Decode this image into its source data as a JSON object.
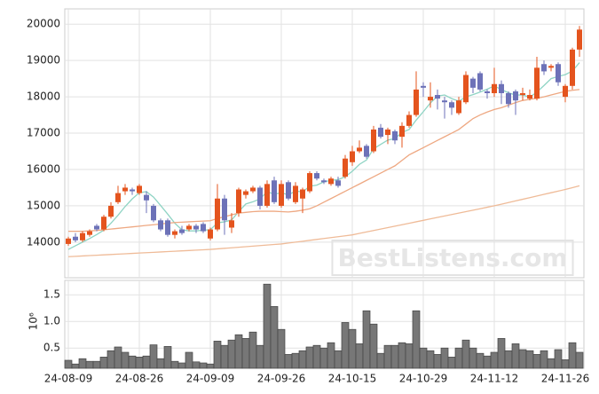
{
  "chart_data": [
    {
      "type": "candlestick",
      "up_color": "#e4541e",
      "down_color": "#6d72b8",
      "open": [
        13950,
        14150,
        14050,
        14200,
        14450,
        14350,
        14700,
        15100,
        15400,
        15450,
        15350,
        15300,
        15000,
        14600,
        14600,
        14200,
        14350,
        14350,
        14450,
        14500,
        14100,
        14350,
        15200,
        14400,
        14800,
        15300,
        15400,
        15500,
        15000,
        15700,
        15000,
        15650,
        15100,
        15200,
        15400,
        15900,
        15700,
        15600,
        15700,
        15800,
        16200,
        16500,
        16650,
        16500,
        17150,
        16950,
        17050,
        16900,
        17200,
        17500,
        18300,
        17900,
        18050,
        17900,
        17850,
        17550,
        17850,
        18500,
        18650,
        18150,
        18100,
        18350,
        18100,
        18150,
        18050,
        17950,
        17950,
        18900,
        18800,
        18900,
        18000,
        18300,
        19300
      ],
      "high": [
        14150,
        14250,
        14300,
        14350,
        14500,
        14750,
        15100,
        15550,
        15600,
        15500,
        15600,
        15400,
        15050,
        14650,
        14650,
        14350,
        14450,
        14500,
        14500,
        14550,
        14400,
        15600,
        15300,
        14800,
        15500,
        15450,
        15550,
        15550,
        15700,
        15800,
        15700,
        15700,
        15650,
        15500,
        15950,
        15950,
        15750,
        15800,
        15800,
        16400,
        16650,
        16800,
        16700,
        17200,
        17250,
        17150,
        17100,
        17300,
        17600,
        18700,
        18400,
        18400,
        18200,
        18000,
        17900,
        18000,
        18700,
        18550,
        18700,
        18200,
        18800,
        18450,
        18150,
        18200,
        18250,
        18200,
        19100,
        19000,
        18900,
        18950,
        18350,
        19350,
        19950
      ],
      "low": [
        13900,
        14000,
        14000,
        14150,
        14300,
        14300,
        14650,
        15050,
        15300,
        15300,
        15300,
        14800,
        14550,
        14300,
        14150,
        14100,
        14200,
        14300,
        14250,
        14250,
        14050,
        14300,
        14200,
        14250,
        14700,
        15200,
        15350,
        14900,
        14950,
        15050,
        14950,
        15150,
        15050,
        14800,
        15350,
        15700,
        15600,
        15550,
        15500,
        15750,
        16100,
        16450,
        16300,
        16450,
        16850,
        16700,
        16700,
        16600,
        17150,
        17450,
        18000,
        17700,
        17650,
        17400,
        17500,
        17500,
        17800,
        18100,
        18150,
        17950,
        18000,
        17800,
        17700,
        17500,
        17900,
        17900,
        17900,
        18600,
        18700,
        18300,
        17850,
        18200,
        19100
      ],
      "close": [
        14100,
        14050,
        14250,
        14300,
        14350,
        14700,
        15000,
        15350,
        15500,
        15400,
        15550,
        15150,
        14600,
        14350,
        14200,
        14300,
        14250,
        14450,
        14350,
        14300,
        14350,
        15200,
        14600,
        14600,
        15450,
        15400,
        15500,
        15000,
        15600,
        15100,
        15600,
        15200,
        15550,
        15450,
        15900,
        15750,
        15650,
        15750,
        15550,
        16300,
        16500,
        16600,
        16350,
        17100,
        16900,
        17100,
        16800,
        17200,
        17500,
        18200,
        18250,
        18000,
        17950,
        17850,
        17700,
        17900,
        18600,
        18250,
        18200,
        18100,
        18350,
        18100,
        17800,
        17900,
        18100,
        18050,
        18800,
        18700,
        18850,
        18400,
        18300,
        19300,
        19850
      ],
      "series": [
        {
          "color": "#8fd4c4",
          "values": [
            13800,
            13900,
            14000,
            14100,
            14210,
            14330,
            14520,
            14740,
            14980,
            15190,
            15360,
            15390,
            15240,
            15010,
            14770,
            14520,
            14340,
            14310,
            14310,
            14330,
            14340,
            14530,
            14560,
            14610,
            14840,
            15050,
            15110,
            15190,
            15390,
            15320,
            15360,
            15300,
            15410,
            15380,
            15540,
            15570,
            15660,
            15700,
            15720,
            15800,
            15950,
            16140,
            16260,
            16570,
            16690,
            16810,
            16850,
            17020,
            17100,
            17360,
            17590,
            17830,
            18020,
            18050,
            17950,
            17880,
            18000,
            18060,
            18130,
            18210,
            18300,
            18200,
            18110,
            18050,
            18050,
            17990,
            18130,
            18310,
            18500,
            18560,
            18610,
            18710,
            18940
          ]
        },
        {
          "color": "#eea882",
          "values": [
            14300,
            14300,
            14300,
            14310,
            14320,
            14340,
            14360,
            14380,
            14400,
            14420,
            14440,
            14460,
            14480,
            14500,
            14520,
            14540,
            14550,
            14560,
            14570,
            14580,
            14590,
            14650,
            14700,
            14750,
            14800,
            14820,
            14840,
            14850,
            14850,
            14850,
            14840,
            14830,
            14850,
            14880,
            14920,
            15000,
            15100,
            15200,
            15300,
            15400,
            15500,
            15600,
            15700,
            15800,
            15900,
            16000,
            16100,
            16250,
            16400,
            16500,
            16600,
            16700,
            16800,
            16900,
            17000,
            17100,
            17250,
            17400,
            17500,
            17580,
            17650,
            17700,
            17770,
            17840,
            17900,
            17930,
            17960,
            18000,
            18050,
            18100,
            18150,
            18180,
            18200
          ]
        },
        {
          "color": "#efbb98",
          "values": [
            13600,
            13610,
            13620,
            13630,
            13640,
            13650,
            13660,
            13670,
            13680,
            13690,
            13700,
            13710,
            13720,
            13730,
            13740,
            13750,
            13760,
            13770,
            13780,
            13790,
            13800,
            13815,
            13830,
            13845,
            13860,
            13875,
            13890,
            13905,
            13920,
            13935,
            13950,
            13975,
            14000,
            14025,
            14050,
            14075,
            14100,
            14125,
            14150,
            14175,
            14200,
            14240,
            14280,
            14320,
            14360,
            14400,
            14440,
            14480,
            14520,
            14560,
            14600,
            14640,
            14680,
            14720,
            14760,
            14800,
            14840,
            14880,
            14920,
            14960,
            15000,
            15045,
            15090,
            15135,
            15180,
            15225,
            15270,
            15315,
            15360,
            15405,
            15450,
            15500,
            15550
          ]
        }
      ],
      "ylim": [
        13020,
        20420
      ],
      "yticks": [
        14000,
        15000,
        16000,
        17000,
        18000,
        19000,
        20000
      ],
      "grid": true,
      "watermark": "BestListens.com"
    },
    {
      "type": "bar",
      "color": "#777777",
      "x": [
        "24-08-09",
        null,
        null,
        null,
        null,
        null,
        null,
        null,
        null,
        null,
        "24-08-26",
        null,
        null,
        null,
        null,
        null,
        null,
        null,
        null,
        null,
        "24-09-09",
        null,
        null,
        null,
        null,
        null,
        null,
        null,
        null,
        null,
        "24-09-26",
        null,
        null,
        null,
        null,
        null,
        null,
        null,
        null,
        null,
        "24-10-15",
        null,
        null,
        null,
        null,
        null,
        null,
        null,
        null,
        null,
        "24-10-29",
        null,
        null,
        null,
        null,
        null,
        null,
        null,
        null,
        null,
        "24-11-12",
        null,
        null,
        null,
        null,
        null,
        null,
        null,
        null,
        null,
        "24-11-26",
        null,
        null
      ],
      "values": [
        0.27,
        0.2,
        0.3,
        0.25,
        0.25,
        0.33,
        0.45,
        0.52,
        0.42,
        0.35,
        0.33,
        0.35,
        0.56,
        0.3,
        0.53,
        0.25,
        0.22,
        0.42,
        0.24,
        0.22,
        0.2,
        0.63,
        0.55,
        0.65,
        0.75,
        0.68,
        0.8,
        0.55,
        1.7,
        1.28,
        0.85,
        0.38,
        0.4,
        0.45,
        0.52,
        0.55,
        0.5,
        0.6,
        0.45,
        0.98,
        0.85,
        0.58,
        1.2,
        0.95,
        0.4,
        0.55,
        0.55,
        0.6,
        0.58,
        1.2,
        0.5,
        0.45,
        0.38,
        0.5,
        0.33,
        0.5,
        0.65,
        0.5,
        0.4,
        0.35,
        0.42,
        0.68,
        0.45,
        0.58,
        0.47,
        0.45,
        0.38,
        0.45,
        0.3,
        0.47,
        0.28,
        0.6,
        0.42
      ],
      "ylim": [
        0.12,
        1.77
      ],
      "yticks": [
        0.5,
        {
          "value": 1,
          "label": "1.0"
        },
        1.5
      ],
      "offset_label": "10⁶",
      "grid": true
    }
  ]
}
